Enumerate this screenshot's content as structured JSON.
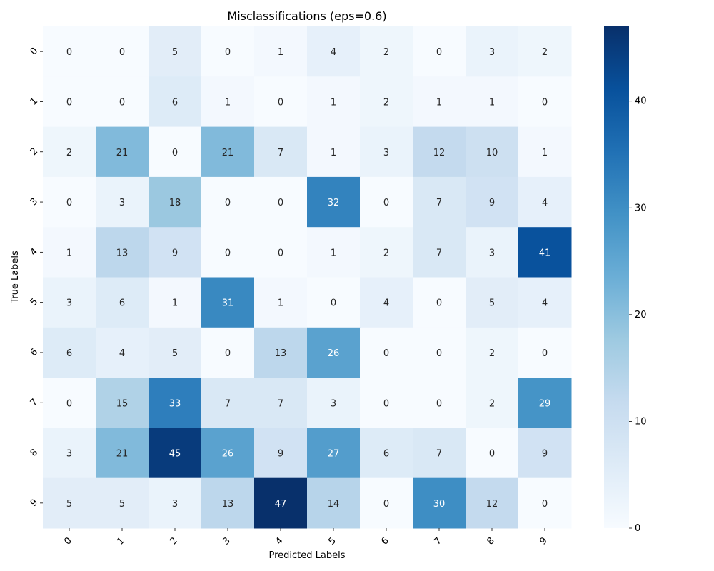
{
  "chart_data": {
    "type": "heatmap",
    "title": "Misclassifications (eps=0.6)",
    "xlabel": "Predicted Labels",
    "ylabel": "True Labels",
    "x_categories": [
      "0",
      "1",
      "2",
      "3",
      "4",
      "5",
      "6",
      "7",
      "8",
      "9"
    ],
    "y_categories": [
      "0",
      "1",
      "2",
      "3",
      "4",
      "5",
      "6",
      "7",
      "8",
      "9"
    ],
    "values": [
      [
        0,
        0,
        5,
        0,
        1,
        4,
        2,
        0,
        3,
        2
      ],
      [
        0,
        0,
        6,
        1,
        0,
        1,
        2,
        1,
        1,
        0
      ],
      [
        2,
        21,
        0,
        21,
        7,
        1,
        3,
        12,
        10,
        1
      ],
      [
        0,
        3,
        18,
        0,
        0,
        32,
        0,
        7,
        9,
        4
      ],
      [
        1,
        13,
        9,
        0,
        0,
        1,
        2,
        7,
        3,
        41
      ],
      [
        3,
        6,
        1,
        31,
        1,
        0,
        4,
        0,
        5,
        4
      ],
      [
        6,
        4,
        5,
        0,
        13,
        26,
        0,
        0,
        2,
        0
      ],
      [
        0,
        15,
        33,
        7,
        7,
        3,
        0,
        0,
        2,
        29
      ],
      [
        3,
        21,
        45,
        26,
        9,
        27,
        6,
        7,
        0,
        9
      ],
      [
        5,
        5,
        3,
        13,
        47,
        14,
        0,
        30,
        12,
        0
      ]
    ],
    "colormap": "Blues",
    "vmin": 0,
    "vmax": 47,
    "colorbar_ticks": [
      0,
      10,
      20,
      30,
      40
    ],
    "grid": false,
    "colorbar": "right"
  }
}
